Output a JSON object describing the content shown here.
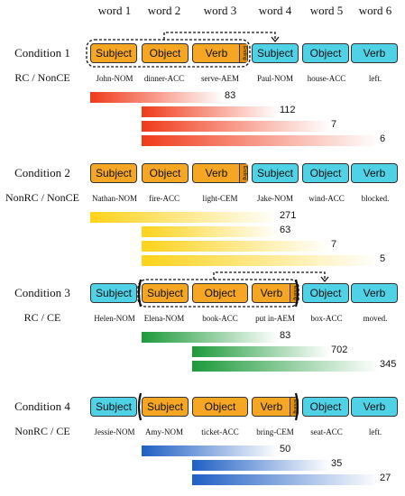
{
  "headers": [
    "word 1",
    "word 2",
    "word 3",
    "word 4",
    "word 5",
    "word 6"
  ],
  "colors": {
    "orange": "#f5a623",
    "cyan": "#4fd1e6"
  },
  "conditions": [
    {
      "title": "Condition 1",
      "subtitle": "RC / NonCE",
      "boxes": [
        {
          "label": "Subject",
          "color": "orange"
        },
        {
          "label": "Object",
          "color": "orange"
        },
        {
          "label": "Verb",
          "color": "orange",
          "suffix": "Ending"
        },
        {
          "label": "Subject",
          "color": "cyan"
        },
        {
          "label": "Object",
          "color": "cyan"
        },
        {
          "label": "Verb",
          "color": "cyan"
        }
      ],
      "glosses": [
        "John-NOM",
        "dinner-ACC",
        "serve-AEM",
        "Paul-NOM",
        "house-ACC",
        "left."
      ],
      "bar_color": "#f03a1a",
      "bars": [
        {
          "start": 0,
          "end": 2,
          "value": "83"
        },
        {
          "start": 1,
          "end": 3,
          "value": "112"
        },
        {
          "start": 1,
          "end": 4,
          "value": "7"
        },
        {
          "start": 1,
          "end": 5,
          "value": "6"
        }
      ]
    },
    {
      "title": "Condition 2",
      "subtitle": "NonRC / NonCE",
      "boxes": [
        {
          "label": "Subject",
          "color": "orange"
        },
        {
          "label": "Object",
          "color": "orange"
        },
        {
          "label": "Verb",
          "color": "orange",
          "suffix": "Ending"
        },
        {
          "label": "Subject",
          "color": "cyan"
        },
        {
          "label": "Object",
          "color": "cyan"
        },
        {
          "label": "Verb",
          "color": "cyan"
        }
      ],
      "glosses": [
        "Nathan-NOM",
        "fire-ACC",
        "light-CEM",
        "Jake-NOM",
        "wind-ACC",
        "blocked."
      ],
      "bar_color": "#ffd21a",
      "bars": [
        {
          "start": 0,
          "end": 3,
          "value": "271"
        },
        {
          "start": 1,
          "end": 3,
          "value": "63"
        },
        {
          "start": 1,
          "end": 4,
          "value": "7"
        },
        {
          "start": 1,
          "end": 5,
          "value": "5"
        }
      ]
    },
    {
      "title": "Condition 3",
      "subtitle": "RC / CE",
      "boxes": [
        {
          "label": "Subject",
          "color": "cyan"
        },
        {
          "label": "Subject",
          "color": "orange"
        },
        {
          "label": "Object",
          "color": "orange"
        },
        {
          "label": "Verb",
          "color": "orange",
          "suffix": "Ending"
        },
        {
          "label": "Object",
          "color": "cyan"
        },
        {
          "label": "Verb",
          "color": "cyan"
        }
      ],
      "glosses": [
        "Helen-NOM",
        "Elena-NOM",
        "book-ACC",
        "put in-AEM",
        "box-ACC",
        "moved."
      ],
      "bar_color": "#1d9a3a",
      "bars": [
        {
          "start": 1,
          "end": 3,
          "value": "83"
        },
        {
          "start": 2,
          "end": 4,
          "value": "702"
        },
        {
          "start": 2,
          "end": 5,
          "value": "345"
        }
      ]
    },
    {
      "title": "Condition 4",
      "subtitle": "NonRC / CE",
      "boxes": [
        {
          "label": "Subject",
          "color": "cyan"
        },
        {
          "label": "Subject",
          "color": "orange"
        },
        {
          "label": "Object",
          "color": "orange"
        },
        {
          "label": "Verb",
          "color": "orange",
          "suffix": "Ending"
        },
        {
          "label": "Object",
          "color": "cyan"
        },
        {
          "label": "Verb",
          "color": "cyan"
        }
      ],
      "glosses": [
        "Jessie-NOM",
        "Amy-NOM",
        "ticket-ACC",
        "bring-CEM",
        "seat-ACC",
        "left."
      ],
      "bar_color": "#1f5fc4",
      "bars": [
        {
          "start": 1,
          "end": 3,
          "value": "50"
        },
        {
          "start": 2,
          "end": 4,
          "value": "35"
        },
        {
          "start": 2,
          "end": 5,
          "value": "27"
        }
      ]
    }
  ]
}
